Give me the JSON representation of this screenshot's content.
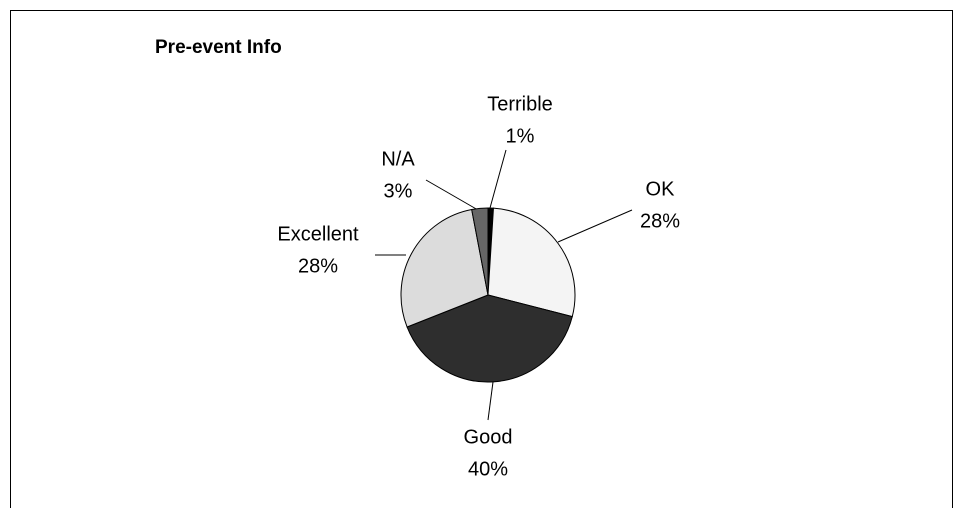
{
  "chart_data": {
    "type": "pie",
    "title": "Pre-event Info",
    "categories": [
      "Terrible",
      "OK",
      "Good",
      "Excellent",
      "N/A"
    ],
    "values": [
      1,
      28,
      40,
      28,
      3
    ],
    "value_labels": [
      "1%",
      "28%",
      "40%",
      "28%",
      "3%"
    ],
    "colors": [
      "#000000",
      "#f4f4f4",
      "#2e2e2e",
      "#dcdcdc",
      "#666666"
    ]
  }
}
